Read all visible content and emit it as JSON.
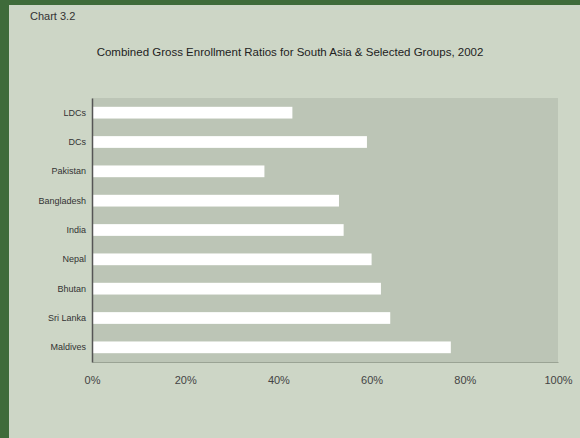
{
  "chart_data": {
    "type": "bar",
    "orientation": "horizontal",
    "title": "Combined Gross Enrollment Ratios for South Asia & Selected Groups, 2002",
    "annotations": [
      "Chart 3.2"
    ],
    "categories": [
      "LDCs",
      "DCs",
      "Pakistan",
      "Bangladesh",
      "India",
      "Nepal",
      "Bhutan",
      "Sri Lanka",
      "Maldives"
    ],
    "values": [
      43,
      59,
      37,
      53,
      54,
      60,
      62,
      64,
      77
    ],
    "color": "#ffffff",
    "xlim": [
      0,
      100
    ],
    "xticks": [
      {
        "value": 0,
        "label": "0%"
      },
      {
        "value": 20,
        "label": "20%"
      },
      {
        "value": 40,
        "label": "40%"
      },
      {
        "value": 60,
        "label": "60%"
      },
      {
        "value": 80,
        "label": "80%"
      },
      {
        "value": 100,
        "label": "100%"
      }
    ],
    "grid": false
  }
}
